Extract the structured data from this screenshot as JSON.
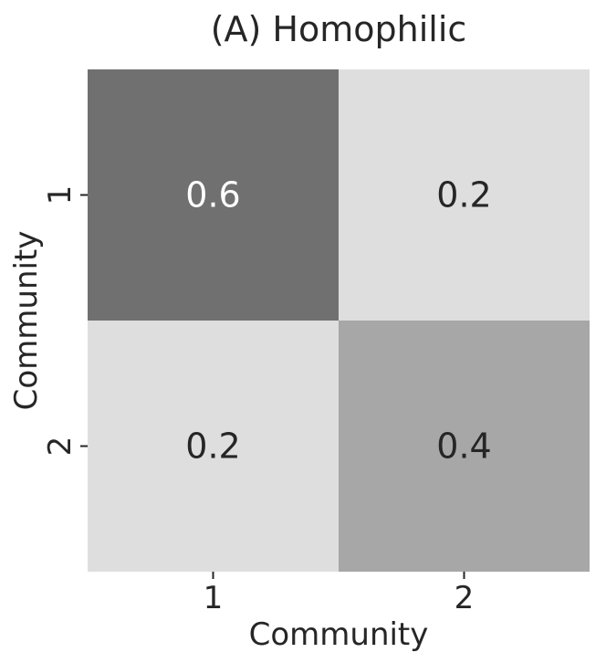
{
  "chart_data": {
    "type": "heatmap",
    "title": "(A) Homophilic",
    "xlabel": "Community",
    "ylabel": "Community",
    "x_categories": [
      "1",
      "2"
    ],
    "y_categories": [
      "1",
      "2"
    ],
    "values": [
      [
        0.6,
        0.2
      ],
      [
        0.2,
        0.4
      ]
    ],
    "value_labels": [
      [
        "0.6",
        "0.2"
      ],
      [
        "0.2",
        "0.4"
      ]
    ],
    "colorscale": "greys",
    "grid": false,
    "colorbar": false
  }
}
